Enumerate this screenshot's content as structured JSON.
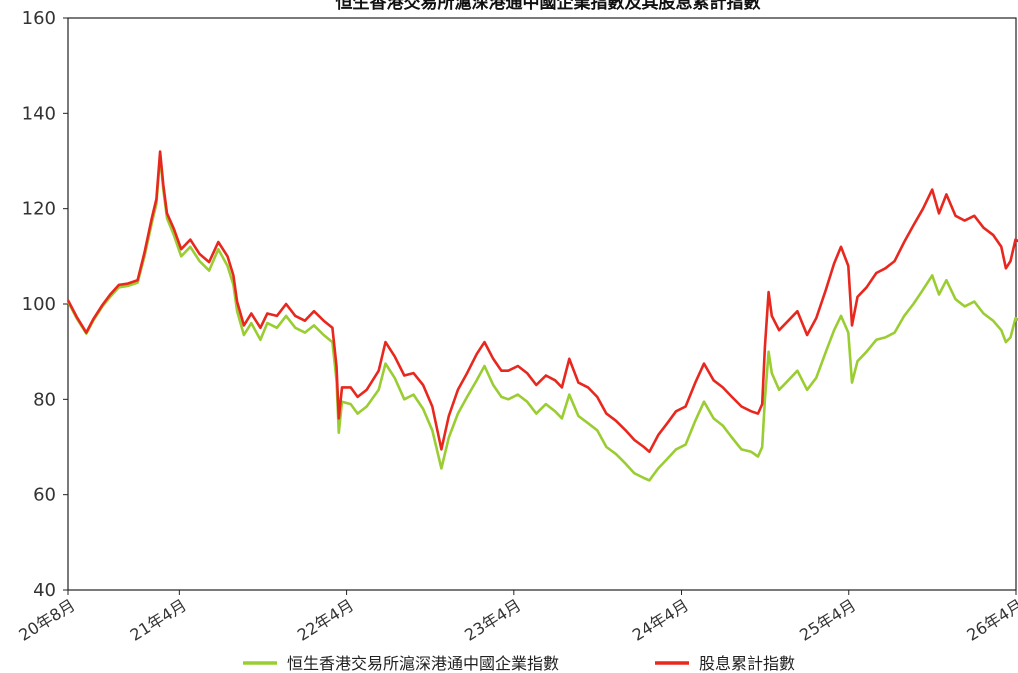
{
  "chart_data": {
    "type": "line",
    "title": "恒生香港交易所滬深港通中國企業指數及其股息累計指數",
    "xlabel": "",
    "ylabel": "",
    "ylim": [
      40,
      160
    ],
    "y_ticks": [
      40,
      60,
      80,
      100,
      120,
      140,
      160
    ],
    "x_tick_labels": [
      "20年8月",
      "21年4月",
      "22年4月",
      "23年4月",
      "24年4月",
      "25年4月",
      "26年4月"
    ],
    "x_tick_dates": [
      "2020-08",
      "2021-04",
      "2022-04",
      "2023-04",
      "2024-04",
      "2025-04",
      "2026-04"
    ],
    "grid": false,
    "legend_position": "bottom",
    "series": [
      {
        "name": "恒生香港交易所滬深港通中國企業指數",
        "color": "#9ACD32",
        "points": [
          [
            "2020-08-01",
            100.5
          ],
          [
            "2020-08-20",
            97.0
          ],
          [
            "2020-09-10",
            93.8
          ],
          [
            "2020-09-25",
            96.5
          ],
          [
            "2020-10-15",
            99.5
          ],
          [
            "2020-11-01",
            101.5
          ],
          [
            "2020-11-20",
            103.5
          ],
          [
            "2020-12-10",
            103.8
          ],
          [
            "2020-12-31",
            104.5
          ],
          [
            "2021-01-15",
            110.0
          ],
          [
            "2021-01-31",
            117.0
          ],
          [
            "2021-02-10",
            121.0
          ],
          [
            "2021-02-18",
            131.0
          ],
          [
            "2021-02-25",
            124.0
          ],
          [
            "2021-03-05",
            118.0
          ],
          [
            "2021-03-20",
            114.5
          ],
          [
            "2021-04-05",
            110.0
          ],
          [
            "2021-04-25",
            112.0
          ],
          [
            "2021-05-15",
            109.0
          ],
          [
            "2021-06-05",
            107.0
          ],
          [
            "2021-06-25",
            111.5
          ],
          [
            "2021-07-15",
            108.0
          ],
          [
            "2021-07-28",
            104.0
          ],
          [
            "2021-08-05",
            98.5
          ],
          [
            "2021-08-20",
            93.5
          ],
          [
            "2021-09-05",
            96.0
          ],
          [
            "2021-09-25",
            92.5
          ],
          [
            "2021-10-10",
            96.0
          ],
          [
            "2021-10-31",
            95.0
          ],
          [
            "2021-11-20",
            97.5
          ],
          [
            "2021-12-10",
            95.0
          ],
          [
            "2021-12-31",
            94.0
          ],
          [
            "2022-01-20",
            95.5
          ],
          [
            "2022-02-10",
            93.5
          ],
          [
            "2022-03-01",
            92.0
          ],
          [
            "2022-03-10",
            84.0
          ],
          [
            "2022-03-15",
            73.0
          ],
          [
            "2022-03-22",
            79.5
          ],
          [
            "2022-04-10",
            79.0
          ],
          [
            "2022-04-25",
            77.0
          ],
          [
            "2022-05-15",
            78.5
          ],
          [
            "2022-06-10",
            82.0
          ],
          [
            "2022-06-25",
            87.5
          ],
          [
            "2022-07-15",
            84.5
          ],
          [
            "2022-08-05",
            80.0
          ],
          [
            "2022-08-25",
            81.0
          ],
          [
            "2022-09-15",
            78.0
          ],
          [
            "2022-10-05",
            73.5
          ],
          [
            "2022-10-25",
            65.5
          ],
          [
            "2022-11-10",
            72.0
          ],
          [
            "2022-11-30",
            77.0
          ],
          [
            "2022-12-20",
            80.5
          ],
          [
            "2023-01-10",
            84.0
          ],
          [
            "2023-01-27",
            87.0
          ],
          [
            "2023-02-15",
            83.0
          ],
          [
            "2023-03-05",
            80.5
          ],
          [
            "2023-03-20",
            80.0
          ],
          [
            "2023-04-10",
            81.0
          ],
          [
            "2023-04-30",
            79.5
          ],
          [
            "2023-05-20",
            77.0
          ],
          [
            "2023-06-10",
            79.0
          ],
          [
            "2023-06-30",
            77.5
          ],
          [
            "2023-07-15",
            76.0
          ],
          [
            "2023-07-31",
            81.0
          ],
          [
            "2023-08-20",
            76.5
          ],
          [
            "2023-09-10",
            75.0
          ],
          [
            "2023-09-30",
            73.5
          ],
          [
            "2023-10-20",
            70.0
          ],
          [
            "2023-11-10",
            68.5
          ],
          [
            "2023-12-01",
            66.5
          ],
          [
            "2023-12-20",
            64.5
          ],
          [
            "2024-01-10",
            63.5
          ],
          [
            "2024-01-22",
            63.0
          ],
          [
            "2024-02-10",
            65.5
          ],
          [
            "2024-03-01",
            67.5
          ],
          [
            "2024-03-20",
            69.5
          ],
          [
            "2024-04-10",
            70.5
          ],
          [
            "2024-05-01",
            75.5
          ],
          [
            "2024-05-20",
            79.5
          ],
          [
            "2024-06-10",
            76.0
          ],
          [
            "2024-06-30",
            74.5
          ],
          [
            "2024-07-20",
            72.0
          ],
          [
            "2024-08-10",
            69.5
          ],
          [
            "2024-08-31",
            69.0
          ],
          [
            "2024-09-15",
            68.0
          ],
          [
            "2024-09-24",
            70.0
          ],
          [
            "2024-09-30",
            80.0
          ],
          [
            "2024-10-08",
            90.0
          ],
          [
            "2024-10-15",
            85.5
          ],
          [
            "2024-10-31",
            82.0
          ],
          [
            "2024-11-20",
            84.0
          ],
          [
            "2024-12-10",
            86.0
          ],
          [
            "2024-12-31",
            82.0
          ],
          [
            "2025-01-20",
            84.5
          ],
          [
            "2025-02-10",
            90.0
          ],
          [
            "2025-02-28",
            94.5
          ],
          [
            "2025-03-15",
            97.5
          ],
          [
            "2025-03-31",
            94.0
          ],
          [
            "2025-04-08",
            83.5
          ],
          [
            "2025-04-20",
            88.0
          ],
          [
            "2025-05-10",
            90.0
          ],
          [
            "2025-05-31",
            92.5
          ],
          [
            "2025-06-20",
            93.0
          ],
          [
            "2025-07-10",
            94.0
          ],
          [
            "2025-07-31",
            97.5
          ],
          [
            "2025-08-20",
            100.0
          ],
          [
            "2025-09-10",
            103.0
          ],
          [
            "2025-09-30",
            106.0
          ],
          [
            "2025-10-15",
            102.0
          ],
          [
            "2025-10-31",
            105.0
          ],
          [
            "2025-11-20",
            101.0
          ],
          [
            "2025-12-10",
            99.5
          ],
          [
            "2025-12-31",
            100.5
          ],
          [
            "2026-01-20",
            98.0
          ],
          [
            "2026-02-10",
            96.5
          ],
          [
            "2026-02-28",
            94.5
          ],
          [
            "2026-03-10",
            92.0
          ],
          [
            "2026-03-20",
            93.0
          ],
          [
            "2026-03-31",
            97.0
          ],
          [
            "2026-04-10",
            96.5
          ]
        ]
      },
      {
        "name": "股息累計指數",
        "color": "#E8281E",
        "points": [
          [
            "2020-08-01",
            100.8
          ],
          [
            "2020-08-20",
            97.3
          ],
          [
            "2020-09-10",
            94.0
          ],
          [
            "2020-09-25",
            96.8
          ],
          [
            "2020-10-15",
            99.8
          ],
          [
            "2020-11-01",
            102.0
          ],
          [
            "2020-11-20",
            104.0
          ],
          [
            "2020-12-10",
            104.3
          ],
          [
            "2020-12-31",
            105.0
          ],
          [
            "2021-01-15",
            110.8
          ],
          [
            "2021-01-31",
            118.0
          ],
          [
            "2021-02-10",
            122.0
          ],
          [
            "2021-02-18",
            132.0
          ],
          [
            "2021-02-25",
            125.0
          ],
          [
            "2021-03-05",
            119.0
          ],
          [
            "2021-03-20",
            115.8
          ],
          [
            "2021-04-05",
            111.5
          ],
          [
            "2021-04-25",
            113.5
          ],
          [
            "2021-05-15",
            110.5
          ],
          [
            "2021-06-05",
            108.8
          ],
          [
            "2021-06-25",
            113.0
          ],
          [
            "2021-07-15",
            110.0
          ],
          [
            "2021-07-28",
            106.0
          ],
          [
            "2021-08-05",
            100.5
          ],
          [
            "2021-08-20",
            95.5
          ],
          [
            "2021-09-05",
            98.0
          ],
          [
            "2021-09-25",
            95.0
          ],
          [
            "2021-10-10",
            98.0
          ],
          [
            "2021-10-31",
            97.5
          ],
          [
            "2021-11-20",
            100.0
          ],
          [
            "2021-12-10",
            97.5
          ],
          [
            "2021-12-31",
            96.5
          ],
          [
            "2022-01-20",
            98.5
          ],
          [
            "2022-02-10",
            96.5
          ],
          [
            "2022-03-01",
            95.0
          ],
          [
            "2022-03-10",
            87.0
          ],
          [
            "2022-03-15",
            76.0
          ],
          [
            "2022-03-22",
            82.5
          ],
          [
            "2022-04-10",
            82.5
          ],
          [
            "2022-04-25",
            80.5
          ],
          [
            "2022-05-15",
            82.0
          ],
          [
            "2022-06-10",
            86.0
          ],
          [
            "2022-06-25",
            92.0
          ],
          [
            "2022-07-15",
            89.0
          ],
          [
            "2022-08-05",
            85.0
          ],
          [
            "2022-08-25",
            85.5
          ],
          [
            "2022-09-15",
            83.0
          ],
          [
            "2022-10-05",
            78.5
          ],
          [
            "2022-10-25",
            69.5
          ],
          [
            "2022-11-10",
            76.5
          ],
          [
            "2022-11-30",
            82.0
          ],
          [
            "2022-12-20",
            85.5
          ],
          [
            "2023-01-10",
            89.5
          ],
          [
            "2023-01-27",
            92.0
          ],
          [
            "2023-02-15",
            88.5
          ],
          [
            "2023-03-05",
            86.0
          ],
          [
            "2023-03-20",
            86.0
          ],
          [
            "2023-04-10",
            87.0
          ],
          [
            "2023-04-30",
            85.5
          ],
          [
            "2023-05-20",
            83.0
          ],
          [
            "2023-06-10",
            85.0
          ],
          [
            "2023-06-30",
            84.0
          ],
          [
            "2023-07-15",
            82.5
          ],
          [
            "2023-07-31",
            88.5
          ],
          [
            "2023-08-20",
            83.5
          ],
          [
            "2023-09-10",
            82.5
          ],
          [
            "2023-09-30",
            80.5
          ],
          [
            "2023-10-20",
            77.0
          ],
          [
            "2023-11-10",
            75.5
          ],
          [
            "2023-12-01",
            73.5
          ],
          [
            "2023-12-20",
            71.5
          ],
          [
            "2024-01-10",
            70.0
          ],
          [
            "2024-01-22",
            69.0
          ],
          [
            "2024-02-10",
            72.5
          ],
          [
            "2024-03-01",
            75.0
          ],
          [
            "2024-03-20",
            77.5
          ],
          [
            "2024-04-10",
            78.5
          ],
          [
            "2024-05-01",
            83.5
          ],
          [
            "2024-05-20",
            87.5
          ],
          [
            "2024-06-10",
            84.0
          ],
          [
            "2024-06-30",
            82.5
          ],
          [
            "2024-07-20",
            80.5
          ],
          [
            "2024-08-10",
            78.5
          ],
          [
            "2024-08-31",
            77.5
          ],
          [
            "2024-09-15",
            77.0
          ],
          [
            "2024-09-24",
            79.0
          ],
          [
            "2024-09-30",
            91.0
          ],
          [
            "2024-10-08",
            102.5
          ],
          [
            "2024-10-15",
            97.5
          ],
          [
            "2024-10-31",
            94.5
          ],
          [
            "2024-11-20",
            96.5
          ],
          [
            "2024-12-10",
            98.5
          ],
          [
            "2024-12-31",
            93.5
          ],
          [
            "2025-01-20",
            97.0
          ],
          [
            "2025-02-10",
            103.0
          ],
          [
            "2025-02-28",
            108.5
          ],
          [
            "2025-03-15",
            112.0
          ],
          [
            "2025-03-31",
            108.0
          ],
          [
            "2025-04-08",
            95.5
          ],
          [
            "2025-04-20",
            101.5
          ],
          [
            "2025-05-10",
            103.5
          ],
          [
            "2025-05-31",
            106.5
          ],
          [
            "2025-06-20",
            107.5
          ],
          [
            "2025-07-10",
            109.0
          ],
          [
            "2025-07-31",
            113.0
          ],
          [
            "2025-08-20",
            116.5
          ],
          [
            "2025-09-10",
            120.0
          ],
          [
            "2025-09-30",
            124.0
          ],
          [
            "2025-10-15",
            119.0
          ],
          [
            "2025-10-31",
            123.0
          ],
          [
            "2025-11-20",
            118.5
          ],
          [
            "2025-12-10",
            117.5
          ],
          [
            "2025-12-31",
            118.5
          ],
          [
            "2026-01-20",
            116.0
          ],
          [
            "2026-02-10",
            114.5
          ],
          [
            "2026-02-28",
            112.0
          ],
          [
            "2026-03-10",
            107.5
          ],
          [
            "2026-03-20",
            109.0
          ],
          [
            "2026-03-31",
            113.5
          ],
          [
            "2026-04-10",
            113.0
          ]
        ]
      }
    ]
  }
}
